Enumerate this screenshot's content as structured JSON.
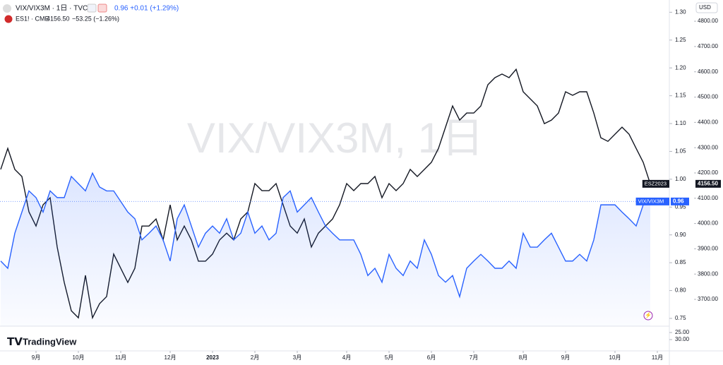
{
  "header": {
    "main_symbol": "VIX/VIX3M · 1日 · TVC",
    "main_quote": "0.96 +0.01 (+1.29%)",
    "second_symbol": "ES1! · CME",
    "second_price": "4156.50",
    "second_change": "−53.25 (−1.26%)",
    "currency": "USD"
  },
  "watermark": "VIX/VIX3M, 1日",
  "brand": "TradingView",
  "chart_data": {
    "type": "line",
    "categories": [
      null,
      null,
      null,
      null,
      null,
      "9月",
      null,
      null,
      null,
      null,
      null,
      "10月",
      null,
      null,
      null,
      null,
      null,
      "11月",
      null,
      null,
      null,
      null,
      null,
      null,
      "12月",
      null,
      null,
      null,
      null,
      null,
      "2023",
      null,
      null,
      null,
      null,
      null,
      "2月",
      null,
      null,
      null,
      null,
      null,
      "3月",
      null,
      null,
      null,
      null,
      null,
      null,
      "4月",
      null,
      null,
      null,
      null,
      null,
      "5月",
      null,
      null,
      null,
      null,
      null,
      "6月",
      null,
      null,
      null,
      null,
      null,
      "7月",
      null,
      null,
      null,
      null,
      null,
      null,
      "8月",
      null,
      null,
      null,
      null,
      null,
      "9月",
      null,
      null,
      null,
      null,
      null,
      null,
      "10月",
      null,
      null,
      null,
      null,
      null,
      "11月"
    ],
    "series": [
      {
        "name": "ESZ2023",
        "color": "#131722",
        "axis": "y2",
        "last_label": "4156.50",
        "values": [
          4214,
          4297,
          4214,
          4186,
          4046,
          3990,
          4074,
          4102,
          3907,
          3767,
          3655,
          3627,
          3795,
          3627,
          3683,
          3711,
          3879,
          3823,
          3767,
          3823,
          3990,
          3990,
          4018,
          3935,
          4074,
          3935,
          3990,
          3935,
          3851,
          3851,
          3879,
          3935,
          3962,
          3935,
          4018,
          4046,
          4158,
          4130,
          4130,
          4158,
          4074,
          3990,
          3962,
          4018,
          3907,
          3962,
          3990,
          4018,
          4074,
          4158,
          4130,
          4158,
          4158,
          4186,
          4102,
          4158,
          4130,
          4158,
          4214,
          4186,
          4214,
          4242,
          4297,
          4381,
          4465,
          4409,
          4437,
          4437,
          4465,
          4549,
          4577,
          4591,
          4577,
          4610,
          4521,
          4493,
          4465,
          4395,
          4409,
          4437,
          4521,
          4507,
          4521,
          4521,
          4437,
          4339,
          4325,
          4353,
          4381,
          4353,
          4297,
          4242,
          4157,
          null
        ]
      },
      {
        "name": "VIX/VIX3M",
        "color": "#2962ff",
        "axis": "y",
        "last_label": "0.96",
        "area": true,
        "values": [
          0.853,
          0.84,
          0.903,
          0.941,
          0.979,
          0.967,
          0.941,
          0.979,
          0.967,
          0.967,
          1.005,
          0.992,
          0.979,
          1.011,
          0.986,
          0.979,
          0.979,
          0.96,
          0.941,
          0.929,
          0.891,
          0.903,
          0.916,
          0.891,
          0.853,
          0.929,
          0.954,
          0.916,
          0.878,
          0.903,
          0.916,
          0.903,
          0.929,
          0.891,
          0.903,
          0.941,
          0.903,
          0.916,
          0.891,
          0.903,
          0.967,
          0.979,
          0.941,
          0.954,
          0.967,
          0.941,
          0.916,
          0.903,
          0.891,
          0.891,
          0.891,
          0.865,
          0.827,
          0.84,
          0.815,
          0.865,
          0.84,
          0.827,
          0.853,
          0.84,
          0.891,
          0.865,
          0.827,
          0.815,
          0.827,
          0.789,
          0.84,
          0.853,
          0.865,
          0.853,
          0.84,
          0.84,
          0.853,
          0.84,
          0.903,
          0.878,
          0.878,
          0.891,
          0.903,
          0.878,
          0.853,
          0.853,
          0.865,
          0.853,
          0.891,
          0.954,
          0.954,
          0.954,
          0.941,
          0.929,
          0.916,
          0.954,
          0.96,
          null
        ]
      }
    ],
    "ylim": [
      0.736,
      1.322
    ],
    "yticks": [
      0.75,
      {
        "value": 0.8,
        "label": "0.80"
      },
      0.85,
      {
        "value": 0.9,
        "label": "0.90"
      },
      0.95,
      {
        "value": 1.0,
        "label": "1.00"
      },
      1.05,
      {
        "value": 1.1,
        "label": "1.10"
      },
      1.15,
      {
        "value": 1.2,
        "label": "1.20"
      },
      1.25,
      {
        "value": 1.3,
        "label": "1.30"
      }
    ],
    "y2lim": [
      3594,
      4884
    ],
    "y2ticks": [
      {
        "value": 3700,
        "label": "3700.00"
      },
      {
        "value": 3800,
        "label": "3800.00"
      },
      {
        "value": 3900,
        "label": "3900.00"
      },
      {
        "value": 4000,
        "label": "4000.00"
      },
      {
        "value": 4100,
        "label": "4100.00"
      },
      {
        "value": 4200,
        "label": "4200.00"
      },
      {
        "value": 4300,
        "label": "4300.00"
      },
      {
        "value": 4400,
        "label": "4400.00"
      },
      {
        "value": 4500,
        "label": "4500.00"
      },
      {
        "value": 4600,
        "label": "4600.00"
      },
      {
        "value": 4700,
        "label": "4700.00"
      },
      {
        "value": 4800,
        "label": "4800.00"
      }
    ],
    "lower_pane": {
      "ylim": [
        20.5,
        38
      ],
      "inverted": true,
      "yticks": [
        {
          "value": 25,
          "label": "25.00"
        },
        {
          "value": 30,
          "label": "30.00"
        }
      ]
    },
    "grid": false
  }
}
